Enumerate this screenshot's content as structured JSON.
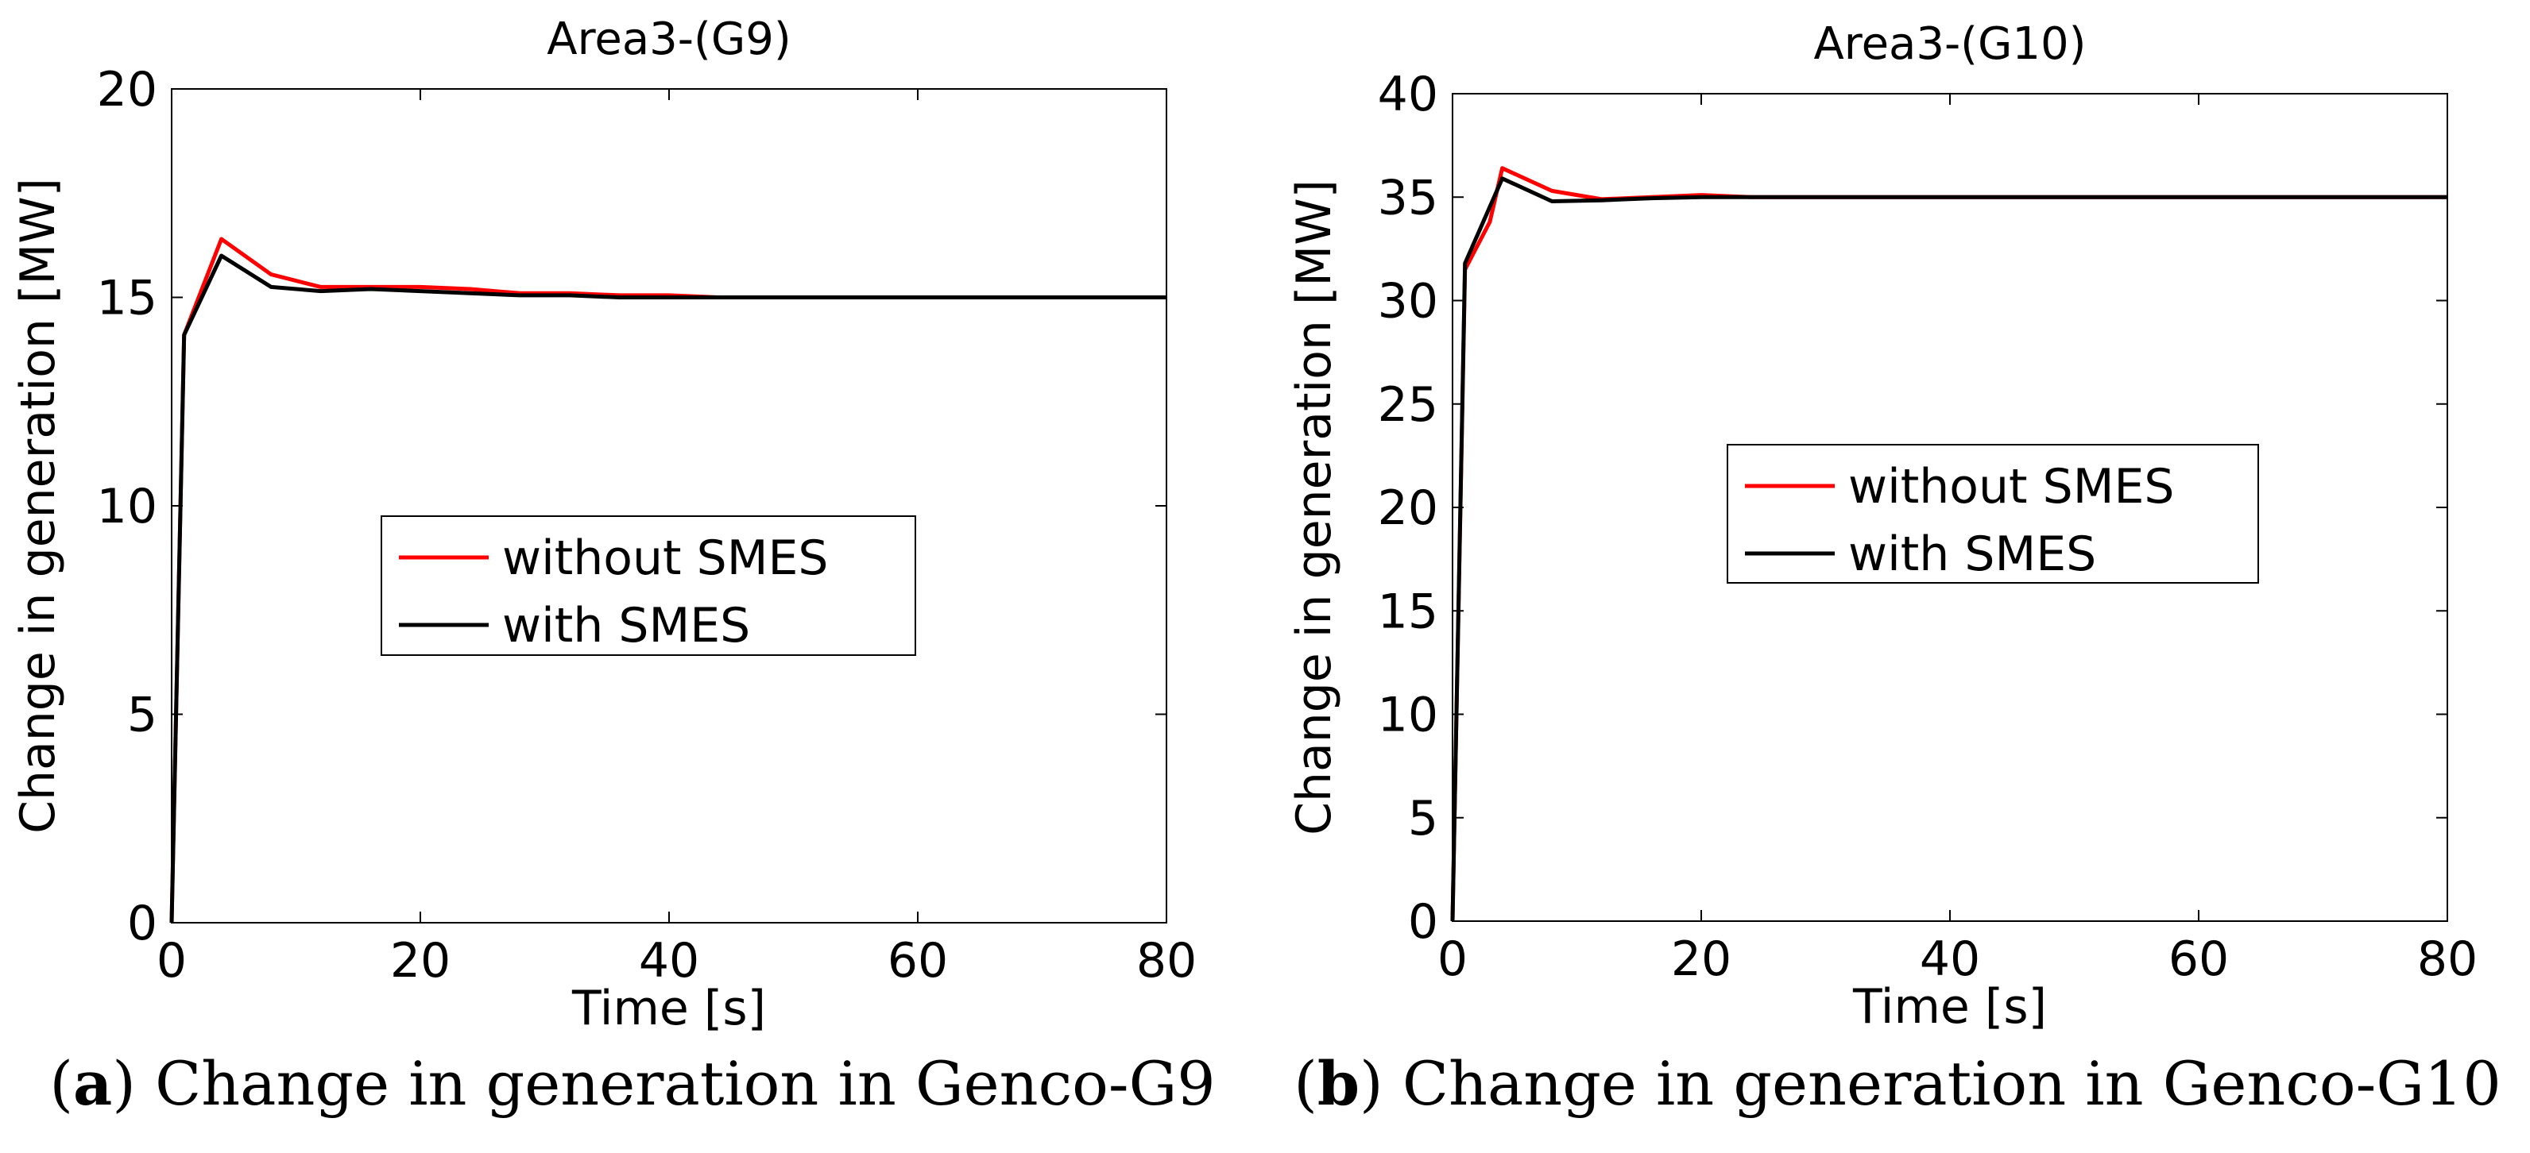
{
  "chart_data": [
    {
      "type": "line",
      "title": "Area3-(G9)",
      "xlabel": "Time [s]",
      "ylabel": "Change in generation [MW]",
      "xlim": [
        0,
        80
      ],
      "ylim": [
        0,
        20
      ],
      "xticks": [
        0,
        20,
        40,
        60,
        80
      ],
      "yticks": [
        0,
        5,
        10,
        15,
        20
      ],
      "legend_position": "center",
      "series": [
        {
          "name": "without SMES",
          "color": "#ff0000",
          "x": [
            0,
            1,
            4,
            8,
            12,
            16,
            20,
            24,
            28,
            32,
            36,
            40,
            44,
            50,
            60,
            70,
            80
          ],
          "y": [
            0,
            14.1,
            16.4,
            15.55,
            15.25,
            15.25,
            15.25,
            15.2,
            15.1,
            15.1,
            15.05,
            15.05,
            15.0,
            15.0,
            15.0,
            15.0,
            15.0
          ]
        },
        {
          "name": "with SMES",
          "color": "#000000",
          "x": [
            0,
            1,
            4,
            8,
            12,
            16,
            20,
            24,
            28,
            32,
            36,
            40,
            44,
            50,
            60,
            70,
            80
          ],
          "y": [
            0,
            14.1,
            16.0,
            15.25,
            15.15,
            15.2,
            15.15,
            15.1,
            15.05,
            15.05,
            15.0,
            15.0,
            15.0,
            15.0,
            15.0,
            15.0,
            15.0
          ]
        }
      ]
    },
    {
      "type": "line",
      "title": "Area3-(G10)",
      "xlabel": "Time [s]",
      "ylabel": "Change in generation [MW]",
      "xlim": [
        0,
        80
      ],
      "ylim": [
        0,
        40
      ],
      "xticks": [
        0,
        20,
        40,
        60,
        80
      ],
      "yticks": [
        0,
        5,
        10,
        15,
        20,
        25,
        30,
        35,
        40
      ],
      "legend_position": "center-right",
      "series": [
        {
          "name": "without SMES",
          "color": "#ff0000",
          "x": [
            0,
            1,
            3,
            4,
            8,
            12,
            16,
            20,
            24,
            30,
            40,
            50,
            60,
            70,
            80
          ],
          "y": [
            0,
            31.5,
            33.8,
            36.4,
            35.3,
            34.9,
            35.0,
            35.1,
            35.0,
            35.0,
            35.0,
            35.0,
            35.0,
            35.0,
            35.0
          ]
        },
        {
          "name": "with SMES",
          "color": "#000000",
          "x": [
            0,
            1,
            4,
            8,
            12,
            16,
            20,
            24,
            30,
            40,
            50,
            60,
            70,
            80
          ],
          "y": [
            0,
            31.8,
            35.9,
            34.8,
            34.85,
            34.95,
            35.0,
            35.0,
            35.0,
            35.0,
            35.0,
            35.0,
            35.0,
            35.0
          ]
        }
      ]
    }
  ],
  "captions": [
    {
      "letter": "a",
      "text": ") Change in generation in Genco-G9"
    },
    {
      "letter": "b",
      "text": ") Change in generation in Genco-G10"
    }
  ]
}
